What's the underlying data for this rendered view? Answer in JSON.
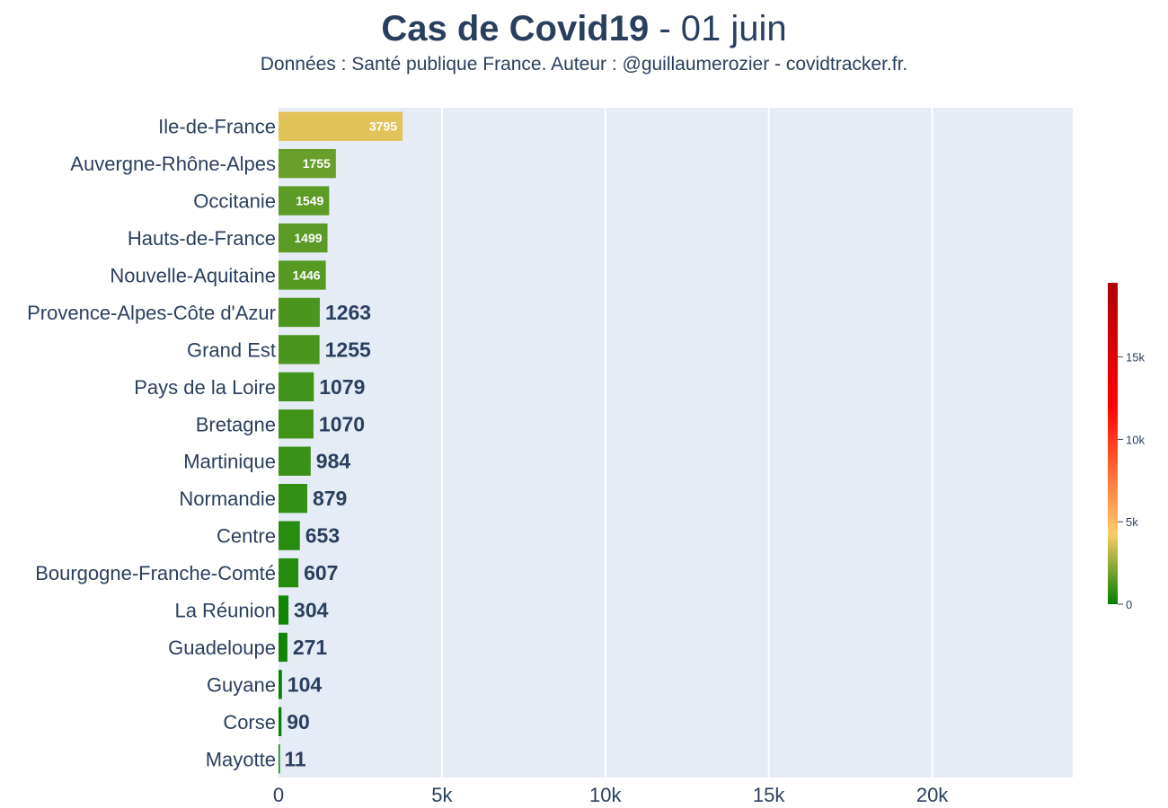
{
  "chart_data": {
    "type": "bar",
    "orientation": "horizontal",
    "title_bold": "Cas de Covid19",
    "title_rest": " - 01 juin",
    "subtitle": "Données : Santé publique France. Auteur : @guillaumerozier - covidtracker.fr.",
    "categories": [
      "Ile-de-France",
      "Auvergne-Rhône-Alpes",
      "Occitanie",
      "Hauts-de-France",
      "Nouvelle-Aquitaine",
      "Provence-Alpes-Côte d'Azur",
      "Grand Est",
      "Pays de la Loire",
      "Bretagne",
      "Martinique",
      "Normandie",
      "Centre",
      "Bourgogne-Franche-Comté",
      "La Réunion",
      "Guadeloupe",
      "Guyane",
      "Corse",
      "Mayotte"
    ],
    "values": [
      3795,
      1755,
      1549,
      1499,
      1446,
      1263,
      1255,
      1079,
      1070,
      984,
      879,
      653,
      607,
      304,
      271,
      104,
      90,
      11
    ],
    "labels": [
      "3795",
      "1755",
      "1549",
      "1499",
      "1446",
      "1263",
      "1255",
      "1079",
      "1070",
      "984",
      "879",
      "653",
      "607",
      "304",
      "271",
      "104",
      "90",
      "11"
    ],
    "xlim": [
      0,
      24300
    ],
    "xticks": [
      0,
      5000,
      10000,
      15000,
      20000
    ],
    "xtick_labels": [
      "0",
      "5k",
      "10k",
      "15k",
      "20k"
    ],
    "grid": true,
    "colorbar": {
      "range": [
        0,
        19500
      ],
      "ticks": [
        0,
        5000,
        10000,
        15000
      ],
      "tick_labels": [
        "0",
        "5k",
        "10k",
        "15k"
      ],
      "colors": [
        "#008000",
        "#ffcc66",
        "#ff0000",
        "#b00000"
      ]
    },
    "colors": {
      "plot_bg": "#e5ecf6",
      "text": "#2a3f5f",
      "grid": "#ffffff"
    }
  }
}
